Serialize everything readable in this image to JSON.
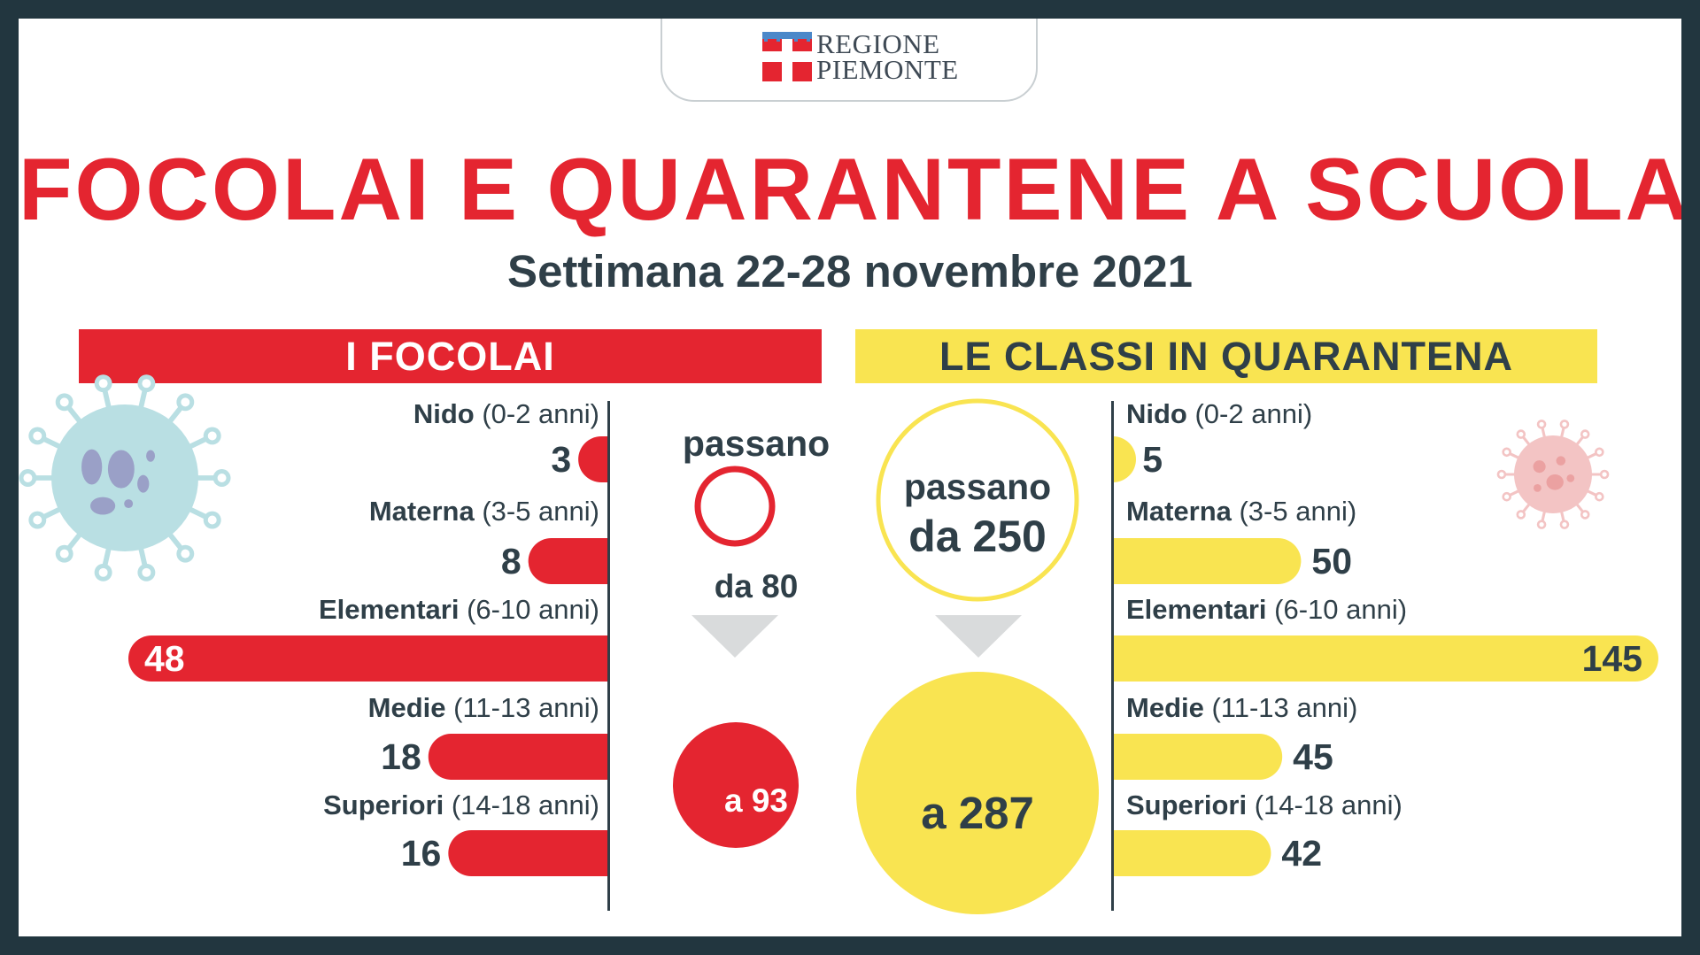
{
  "logo": {
    "line1": "REGIONE",
    "line2": "PIEMONTE"
  },
  "title": "FOCOLAI E QUARANTENE A SCUOLA",
  "subtitle": "Settimana 22-28 novembre 2021",
  "colors": {
    "red": "#e42530",
    "yellow": "#f9e451",
    "text": "#2f3f48",
    "frame": "#22363f",
    "arrow": "#d9dbdc",
    "virus_blue": "#b9dfe3",
    "virus_pink": "#f3c4c4"
  },
  "focolai": {
    "header": "I FOCOLAI",
    "passano": "passano",
    "da": "da 80",
    "a": "a 93"
  },
  "classi": {
    "header": "LE CLASSI IN QUARANTENA",
    "passano": "passano",
    "da": "da 250",
    "a": "a 287"
  },
  "chart_data": [
    {
      "type": "bar",
      "title": "I FOCOLAI",
      "orientation": "horizontal",
      "direction": "right-to-left",
      "color": "#e42530",
      "categories": [
        {
          "name": "Nido",
          "range": "(0-2 anni)"
        },
        {
          "name": "Materna",
          "range": "(3-5 anni)"
        },
        {
          "name": "Elementari",
          "range": "(6-10 anni)"
        },
        {
          "name": "Medie",
          "range": "(11-13 anni)"
        },
        {
          "name": "Superiori",
          "range": "(14-18 anni)"
        }
      ],
      "values": [
        3,
        8,
        48,
        18,
        16
      ],
      "total_from": 80,
      "total_to": 93
    },
    {
      "type": "bar",
      "title": "LE CLASSI IN QUARANTENA",
      "orientation": "horizontal",
      "direction": "left-to-right",
      "color": "#f9e451",
      "categories": [
        {
          "name": "Nido",
          "range": "(0-2 anni)"
        },
        {
          "name": "Materna",
          "range": "(3-5 anni)"
        },
        {
          "name": "Elementari",
          "range": "(6-10 anni)"
        },
        {
          "name": "Medie",
          "range": "(11-13 anni)"
        },
        {
          "name": "Superiori",
          "range": "(14-18 anni)"
        }
      ],
      "values": [
        5,
        50,
        145,
        45,
        42
      ],
      "total_from": 250,
      "total_to": 287
    }
  ]
}
